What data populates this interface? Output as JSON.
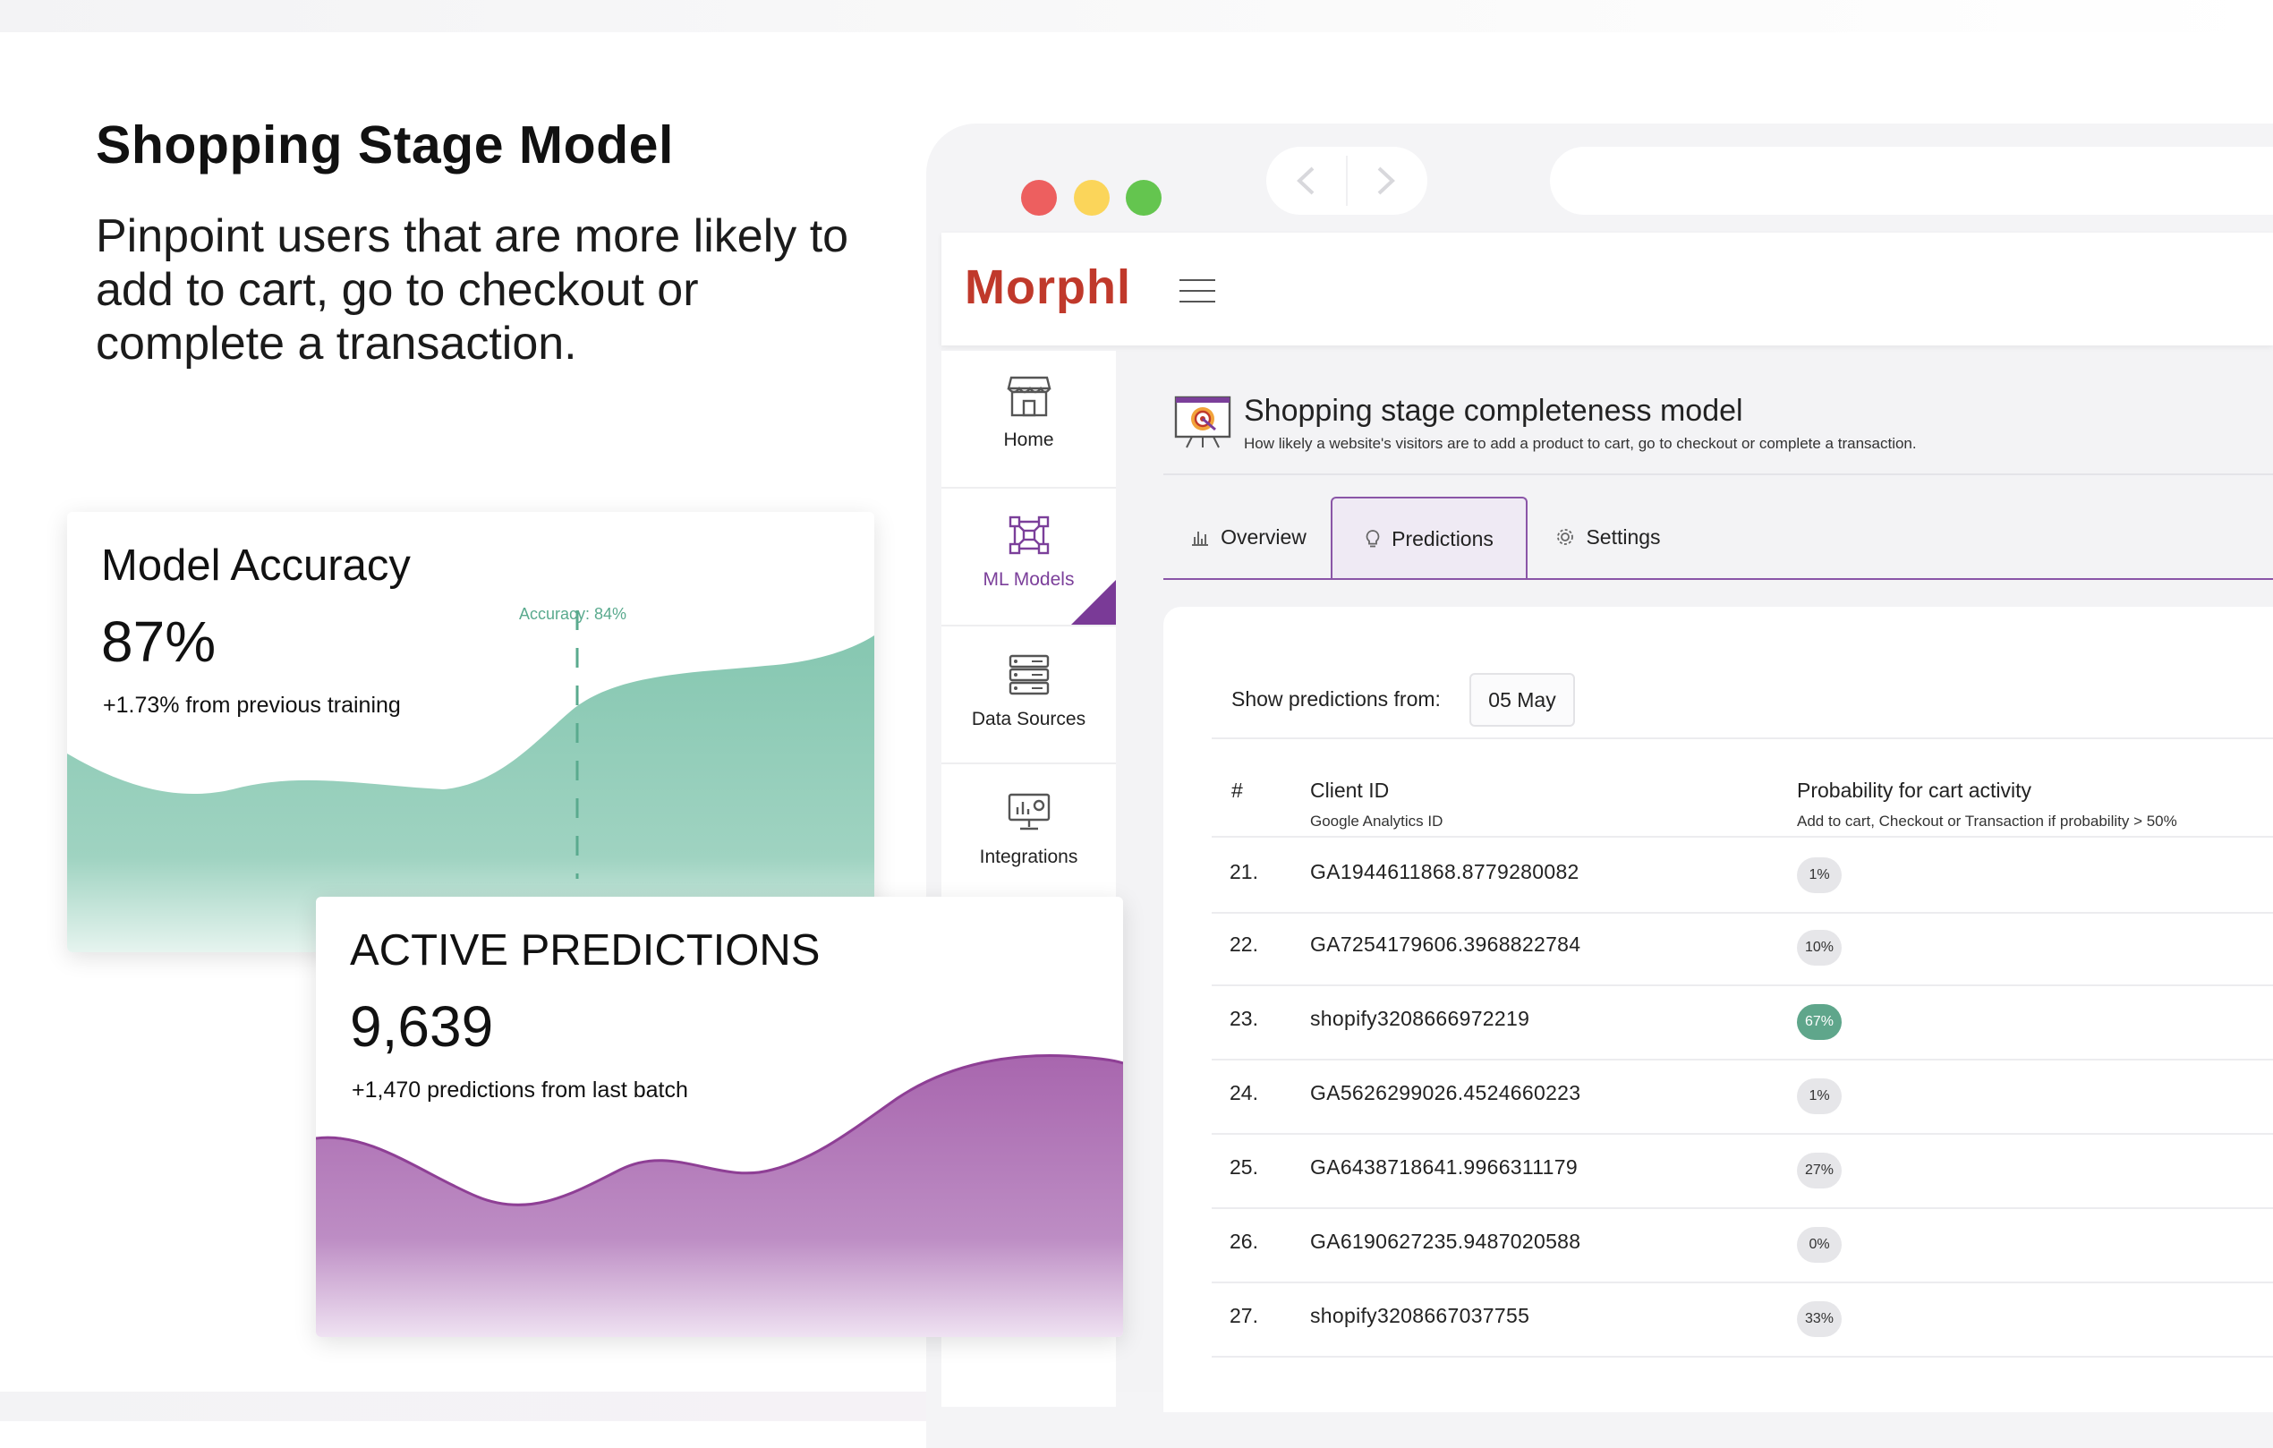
{
  "hero": {
    "title": "Shopping Stage Model",
    "description": "Pinpoint users that are more likely to add to cart, go to checkout or complete a transaction."
  },
  "app": {
    "logo": "Morphl",
    "sidebar": [
      {
        "label": "Home",
        "icon": "store-icon"
      },
      {
        "label": "ML Models",
        "icon": "network-icon",
        "active": true
      },
      {
        "label": "Data Sources",
        "icon": "server-icon"
      },
      {
        "label": "Integrations",
        "icon": "monitor-icon"
      }
    ],
    "page": {
      "title": "Shopping stage completeness model",
      "subtitle": "How likely a website's visitors are to add a product to cart, go to checkout or complete a transaction."
    },
    "tabs": [
      {
        "label": "Overview",
        "icon": "bar-chart-icon"
      },
      {
        "label": "Predictions",
        "icon": "lightbulb-icon",
        "active": true
      },
      {
        "label": "Settings",
        "icon": "gear-icon"
      }
    ],
    "filter": {
      "label": "Show predictions from:",
      "value": "05 May"
    },
    "table": {
      "headers": {
        "num": "#",
        "client": "Client ID",
        "client_sub": "Google Analytics ID",
        "prob": "Probability for cart activity",
        "prob_sub": "Add to cart, Checkout or Transaction if probability > 50%"
      },
      "rows": [
        {
          "num": "21.",
          "client_id": "GA1944611868.8779280082",
          "probability": "1%"
        },
        {
          "num": "22.",
          "client_id": "GA7254179606.3968822784",
          "probability": "10%"
        },
        {
          "num": "23.",
          "client_id": "shopify3208666972219",
          "probability": "67%"
        },
        {
          "num": "24.",
          "client_id": "GA5626299026.4524660223",
          "probability": "1%"
        },
        {
          "num": "25.",
          "client_id": "GA6438718641.9966311179",
          "probability": "27%"
        },
        {
          "num": "26.",
          "client_id": "GA6190627235.9487020588",
          "probability": "0%"
        },
        {
          "num": "27.",
          "client_id": "shopify3208667037755",
          "probability": "33%"
        }
      ]
    }
  },
  "accuracy_card": {
    "title": "Model Accuracy",
    "value": "87%",
    "note": "+1.73% from previous training",
    "marker_label": "Accuracy: 84%",
    "color": "#86c7b1"
  },
  "predictions_card": {
    "title": "ACTIVE PREDICTIONS",
    "value": "9,639",
    "note": "+1,470 predictions from last batch",
    "color": "#a866ae"
  },
  "colors": {
    "accent": "#8a55a7",
    "teal": "#5fa68b"
  }
}
